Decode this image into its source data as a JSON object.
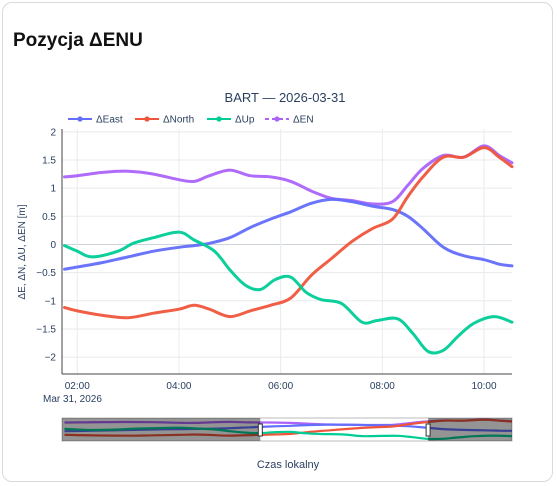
{
  "card": {
    "title": "Pozycja ΔENU"
  },
  "chart_data": {
    "type": "line",
    "title": "BART — 2026-03-31",
    "xlabel": "Czas lokalny",
    "ylabel": "ΔE, ΔN, ΔU, ΔEN  [m]",
    "x_ticks": [
      "02:00",
      "04:00",
      "06:00",
      "08:00",
      "10:00"
    ],
    "x_tick_hours": [
      2,
      4,
      6,
      8,
      10
    ],
    "x_date_label": "Mar 31, 2026",
    "xlim_hours": [
      1.7,
      10.55
    ],
    "ylim": [
      -2.3,
      2.05
    ],
    "y_ticks": [
      -2,
      -1.5,
      -1,
      -0.5,
      0,
      0.5,
      1,
      1.5,
      2
    ],
    "y_tick_labels": [
      "−2",
      "−1.5",
      "−1",
      "−0.5",
      "0",
      "0.5",
      "1",
      "1.5",
      "2"
    ],
    "grid": true,
    "legend_position": "top-left",
    "rangeslider": {
      "visible": true,
      "selected_hours": [
        5.6,
        8.9
      ]
    },
    "series": [
      {
        "name": "ΔEast",
        "color": "#636efa",
        "dash": "solid",
        "marker": true,
        "x": [
          1.75,
          2.0,
          2.5,
          3.0,
          3.5,
          4.0,
          4.3,
          4.6,
          5.0,
          5.4,
          5.8,
          6.2,
          6.6,
          7.0,
          7.4,
          7.8,
          8.2,
          8.5,
          8.8,
          9.2,
          9.6,
          10.0,
          10.3,
          10.55
        ],
        "y": [
          -0.44,
          -0.4,
          -0.32,
          -0.22,
          -0.12,
          -0.05,
          -0.02,
          0.02,
          0.12,
          0.3,
          0.45,
          0.58,
          0.73,
          0.8,
          0.76,
          0.68,
          0.62,
          0.5,
          0.28,
          -0.05,
          -0.2,
          -0.27,
          -0.35,
          -0.38
        ]
      },
      {
        "name": "ΔNorth",
        "color": "#ef553b",
        "dash": "solid",
        "marker": true,
        "x": [
          1.75,
          2.0,
          2.5,
          3.0,
          3.5,
          4.0,
          4.3,
          4.6,
          5.0,
          5.4,
          5.8,
          6.2,
          6.6,
          7.0,
          7.4,
          7.8,
          8.2,
          8.5,
          8.8,
          9.2,
          9.6,
          10.0,
          10.3,
          10.55
        ],
        "y": [
          -1.12,
          -1.18,
          -1.26,
          -1.3,
          -1.22,
          -1.15,
          -1.08,
          -1.15,
          -1.28,
          -1.18,
          -1.08,
          -0.95,
          -0.55,
          -0.25,
          0.05,
          0.28,
          0.45,
          0.85,
          1.2,
          1.55,
          1.55,
          1.72,
          1.55,
          1.38
        ]
      },
      {
        "name": "ΔUp",
        "color": "#00cc96",
        "dash": "solid",
        "marker": true,
        "x": [
          1.75,
          2.0,
          2.3,
          2.8,
          3.1,
          3.5,
          4.0,
          4.3,
          4.7,
          5.0,
          5.3,
          5.6,
          5.9,
          6.2,
          6.5,
          6.8,
          7.2,
          7.6,
          7.9,
          8.3,
          8.6,
          8.9,
          9.2,
          9.5,
          9.8,
          10.2,
          10.55
        ],
        "y": [
          -0.02,
          -0.12,
          -0.22,
          -0.12,
          0.02,
          0.12,
          0.22,
          0.08,
          -0.12,
          -0.45,
          -0.72,
          -0.8,
          -0.62,
          -0.58,
          -0.85,
          -0.98,
          -1.05,
          -1.38,
          -1.35,
          -1.32,
          -1.58,
          -1.9,
          -1.88,
          -1.62,
          -1.4,
          -1.28,
          -1.38
        ]
      },
      {
        "name": "ΔEN",
        "color": "#ab63fa",
        "dash": "dash",
        "marker": true,
        "x": [
          1.75,
          2.0,
          2.5,
          3.0,
          3.5,
          4.0,
          4.3,
          4.6,
          5.0,
          5.4,
          5.8,
          6.2,
          6.6,
          7.0,
          7.4,
          7.8,
          8.2,
          8.5,
          8.8,
          9.2,
          9.6,
          10.0,
          10.3,
          10.55
        ],
        "y": [
          1.2,
          1.22,
          1.28,
          1.3,
          1.25,
          1.15,
          1.12,
          1.22,
          1.32,
          1.22,
          1.2,
          1.12,
          0.95,
          0.82,
          0.78,
          0.72,
          0.76,
          1.05,
          1.35,
          1.58,
          1.55,
          1.75,
          1.58,
          1.45
        ]
      }
    ]
  }
}
